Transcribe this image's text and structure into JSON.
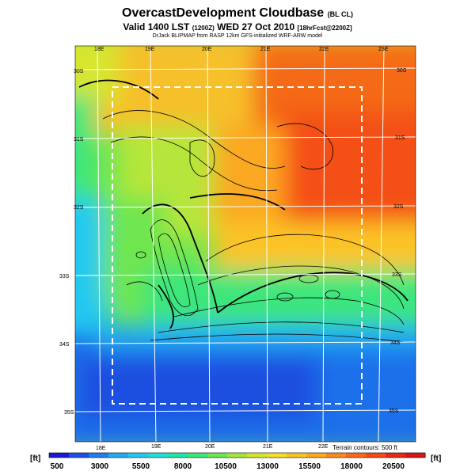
{
  "title": {
    "main": "OvercastDevelopment Cloudbase",
    "suffix": "(BL CL)"
  },
  "subtitle": {
    "main": "Valid 1400 LST",
    "code": "(1200Z)",
    "date": "WED 27 Oct 2010",
    "forecast": "[18hrFcst@2200Z]"
  },
  "credit": "DrJack BLIPMAP from RASP 12km GFS-initialized WRF-ARW model",
  "terrain_note": "Terrain contours: 500 ft",
  "unit_label_left": "[ft]",
  "unit_label_right": "[ft]",
  "map": {
    "lon_labels_top": [
      "18E",
      "19E",
      "20E",
      "21E",
      "22E",
      "23E"
    ],
    "lon_labels_bottom": [
      "18E",
      "19E",
      "20E",
      "21E",
      "22E"
    ],
    "lat_labels_left": [
      "30S",
      "31S",
      "32S",
      "33S",
      "34S",
      "35S"
    ],
    "lat_labels_right": [
      "30S",
      "31S",
      "32S",
      "33S",
      "34S",
      "35S"
    ]
  },
  "colorbar": {
    "tick_labels": [
      "500",
      "3000",
      "5500",
      "8000",
      "10500",
      "13000",
      "15500",
      "18000",
      "20500"
    ],
    "colors": [
      "#1a1ad6",
      "#1f4fe6",
      "#1f7fee",
      "#22aaf2",
      "#22c9f0",
      "#1fe0d8",
      "#1ee6a8",
      "#3ee67c",
      "#6ee650",
      "#a6e63a",
      "#d6e62e",
      "#f6e02a",
      "#fbc425",
      "#fba820",
      "#fb8a1c",
      "#f96a18",
      "#f44a16",
      "#e82a14",
      "#d81414"
    ]
  }
}
